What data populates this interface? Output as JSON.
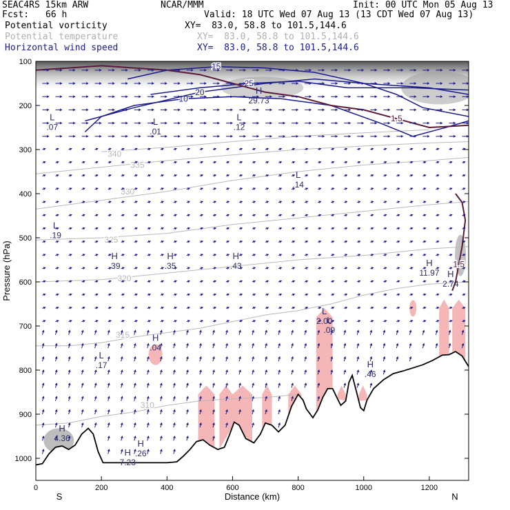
{
  "header": {
    "model": "SEAC4RS 15km ARW",
    "center": "NCAR/MMM",
    "init": "Init: 00 UTC Mon 05 Aug 13",
    "fcst_label": "Fcst:",
    "fcst_value": "66 h",
    "valid": "Valid: 18 UTC Wed 07 Aug 13 (13 CDT Wed 07 Aug 13)"
  },
  "fields": [
    {
      "name": "Potential vorticity",
      "xy": "XY=  83.0, 58.8 to 101.5,144.6",
      "color": "#000000"
    },
    {
      "name": "Potential temperature",
      "xy": "XY=  83.0, 58.8 to 101.5,144.6",
      "color": "#b0b0b0"
    },
    {
      "name": "Horizontal wind speed",
      "xy": "XY=  83.0, 58.8 to 101.5,144.6",
      "color": "#1a1a8c"
    }
  ],
  "colors": {
    "pv_shade": "#999999",
    "pv_contour": "#5a1a3a",
    "theta": "#b8b8b8",
    "wind": "#1a1a8c",
    "vertical_motion": "#f4b6b6",
    "terrain": "#000000"
  },
  "chart_data": {
    "type": "cross-section",
    "xlabel": "Distance (km)",
    "ylabel": "Pressure (hPa)",
    "xlim": [
      0,
      1320
    ],
    "ylim": [
      1050,
      100
    ],
    "x_ticks": [
      0,
      200,
      400,
      600,
      800,
      1000,
      1200
    ],
    "y_ticks": [
      100,
      200,
      300,
      400,
      500,
      600,
      700,
      800,
      900,
      1000
    ],
    "end_labels": {
      "left": "S",
      "right": "N"
    },
    "terrain": [
      [
        0,
        1015
      ],
      [
        20,
        1012
      ],
      [
        40,
        990
      ],
      [
        60,
        975
      ],
      [
        80,
        972
      ],
      [
        100,
        980
      ],
      [
        120,
        970
      ],
      [
        140,
        945
      ],
      [
        160,
        932
      ],
      [
        175,
        945
      ],
      [
        190,
        985
      ],
      [
        205,
        1010
      ],
      [
        300,
        1010
      ],
      [
        400,
        1010
      ],
      [
        430,
        1008
      ],
      [
        450,
        995
      ],
      [
        470,
        980
      ],
      [
        490,
        962
      ],
      [
        510,
        958
      ],
      [
        530,
        970
      ],
      [
        555,
        980
      ],
      [
        575,
        975
      ],
      [
        590,
        948
      ],
      [
        605,
        918
      ],
      [
        620,
        925
      ],
      [
        640,
        955
      ],
      [
        665,
        965
      ],
      [
        685,
        945
      ],
      [
        700,
        920
      ],
      [
        720,
        925
      ],
      [
        740,
        940
      ],
      [
        760,
        925
      ],
      [
        780,
        882
      ],
      [
        800,
        855
      ],
      [
        815,
        868
      ],
      [
        825,
        888
      ],
      [
        845,
        908
      ],
      [
        860,
        890
      ],
      [
        875,
        862
      ],
      [
        890,
        842
      ],
      [
        905,
        842
      ],
      [
        920,
        865
      ],
      [
        930,
        880
      ],
      [
        945,
        870
      ],
      [
        955,
        828
      ],
      [
        965,
        812
      ],
      [
        980,
        855
      ],
      [
        990,
        885
      ],
      [
        1000,
        892
      ],
      [
        1010,
        868
      ],
      [
        1030,
        842
      ],
      [
        1060,
        822
      ],
      [
        1090,
        808
      ],
      [
        1120,
        802
      ],
      [
        1150,
        795
      ],
      [
        1180,
        788
      ],
      [
        1210,
        778
      ],
      [
        1240,
        766
      ],
      [
        1260,
        765
      ],
      [
        1280,
        758
      ],
      [
        1300,
        768
      ],
      [
        1320,
        792
      ]
    ],
    "theta_contours": [
      {
        "label": "310",
        "label_at": [
          340,
          880
        ],
        "points": [
          [
            0,
            925
          ],
          [
            100,
            920
          ],
          [
            200,
            905
          ],
          [
            300,
            895
          ],
          [
            400,
            880
          ],
          [
            500,
            870
          ],
          [
            600,
            865
          ],
          [
            700,
            862
          ],
          [
            800,
            855
          ]
        ]
      },
      {
        "label": "315",
        "label_at": [
          265,
          720
        ],
        "points": [
          [
            0,
            745
          ],
          [
            100,
            745
          ],
          [
            200,
            738
          ],
          [
            300,
            725
          ],
          [
            400,
            715
          ],
          [
            500,
            705
          ],
          [
            600,
            690
          ],
          [
            700,
            675
          ],
          [
            800,
            665
          ],
          [
            900,
            650
          ],
          [
            1000,
            630
          ],
          [
            1100,
            615
          ],
          [
            1200,
            605
          ],
          [
            1320,
            600
          ]
        ]
      },
      {
        "label": "320",
        "label_at": [
          270,
          592
        ],
        "points": [
          [
            0,
            600
          ],
          [
            200,
            595
          ],
          [
            400,
            580
          ],
          [
            600,
            565
          ],
          [
            800,
            550
          ],
          [
            1000,
            540
          ],
          [
            1200,
            525
          ],
          [
            1320,
            520
          ]
        ]
      },
      {
        "label": "325",
        "label_at": [
          230,
          505
        ],
        "points": [
          [
            0,
            505
          ],
          [
            200,
            500
          ],
          [
            400,
            490
          ],
          [
            600,
            470
          ],
          [
            800,
            455
          ],
          [
            1000,
            440
          ],
          [
            1200,
            425
          ],
          [
            1320,
            418
          ]
        ]
      },
      {
        "label": "330",
        "label_at": [
          280,
          395
        ],
        "points": [
          [
            0,
            435
          ],
          [
            200,
            415
          ],
          [
            400,
            395
          ],
          [
            600,
            370
          ],
          [
            800,
            350
          ],
          [
            1000,
            335
          ],
          [
            1200,
            325
          ],
          [
            1320,
            318
          ]
        ]
      },
      {
        "label": "335",
        "label_at": [
          310,
          335
        ],
        "points": [
          [
            0,
            355
          ],
          [
            200,
            340
          ],
          [
            400,
            325
          ],
          [
            600,
            312
          ],
          [
            800,
            300
          ],
          [
            1000,
            292
          ],
          [
            1200,
            285
          ],
          [
            1320,
            282
          ]
        ]
      },
      {
        "label": "340",
        "label_at": [
          240,
          310
        ],
        "points": [
          [
            200,
            305
          ],
          [
            400,
            295
          ],
          [
            600,
            282
          ],
          [
            800,
            270
          ],
          [
            1000,
            262
          ],
          [
            1200,
            255
          ]
        ]
      }
    ],
    "wind_speed_contours": [
      {
        "label": "10",
        "points": [
          [
            150,
            260
          ],
          [
            200,
            225
          ],
          [
            300,
            200
          ],
          [
            450,
            185
          ],
          [
            600,
            180
          ],
          [
            750,
            185
          ],
          [
            900,
            200
          ],
          [
            1050,
            240
          ],
          [
            1150,
            270
          ],
          [
            1250,
            250
          ],
          [
            1320,
            235
          ]
        ]
      },
      {
        "label": "15",
        "points": [
          [
            280,
            140
          ],
          [
            400,
            120
          ],
          [
            550,
            112
          ],
          [
            700,
            115
          ],
          [
            850,
            125
          ],
          [
            1000,
            150
          ],
          [
            1100,
            175
          ],
          [
            1180,
            205
          ],
          [
            1320,
            225
          ]
        ]
      },
      {
        "label": "20",
        "points": [
          [
            150,
            235
          ],
          [
            300,
            205
          ],
          [
            500,
            170
          ],
          [
            700,
            150
          ],
          [
            850,
            140
          ],
          [
            1000,
            150
          ],
          [
            1200,
            160
          ],
          [
            1320,
            175
          ]
        ]
      },
      {
        "label": "25",
        "points": [
          [
            350,
            175
          ],
          [
            500,
            160
          ],
          [
            650,
            150
          ],
          [
            800,
            145
          ],
          [
            950,
            160
          ],
          [
            1150,
            160
          ],
          [
            1320,
            165
          ]
        ]
      }
    ],
    "pv_contours": [
      {
        "label": "1.5",
        "points": [
          [
            0,
            120
          ],
          [
            100,
            115
          ],
          [
            200,
            110
          ],
          [
            300,
            115
          ],
          [
            400,
            120
          ],
          [
            500,
            130
          ],
          [
            600,
            150
          ],
          [
            700,
            170
          ],
          [
            800,
            180
          ],
          [
            900,
            200
          ],
          [
            1000,
            210
          ],
          [
            1100,
            230
          ],
          [
            1200,
            250
          ],
          [
            1320,
            245
          ]
        ]
      },
      {
        "label": "1.5",
        "points": [
          [
            1280,
            400
          ],
          [
            1300,
            420
          ],
          [
            1310,
            460
          ],
          [
            1300,
            520
          ],
          [
            1290,
            560
          ],
          [
            1280,
            600
          ],
          [
            1270,
            620
          ]
        ]
      }
    ],
    "extrema": [
      {
        "kind": "H",
        "value": "29.73",
        "x": 680,
        "p": 180
      },
      {
        "kind": "L",
        "value": ".07",
        "x": 50,
        "p": 240
      },
      {
        "kind": "L",
        "value": ".01",
        "x": 365,
        "p": 250
      },
      {
        "kind": "L",
        "value": ".12",
        "x": 620,
        "p": 240
      },
      {
        "kind": "L",
        "value": ".14",
        "x": 800,
        "p": 370
      },
      {
        "kind": "L",
        "value": ".19",
        "x": 60,
        "p": 485
      },
      {
        "kind": "H",
        "value": ".39",
        "x": 240,
        "p": 555
      },
      {
        "kind": "H",
        "value": ".35",
        "x": 410,
        "p": 555
      },
      {
        "kind": "H",
        "value": ".43",
        "x": 610,
        "p": 555
      },
      {
        "kind": "H",
        "value": "11.97",
        "x": 1200,
        "p": 570
      },
      {
        "kind": "H",
        "value": "2.74",
        "x": 1265,
        "p": 595
      },
      {
        "kind": "L",
        "value": "2.00",
        "x": 880,
        "p": 680
      },
      {
        "kind": "L",
        "value": ".09",
        "x": 895,
        "p": 700
      },
      {
        "kind": "H",
        "value": ".04",
        "x": 365,
        "p": 740
      },
      {
        "kind": "L",
        "value": ".17",
        "x": 200,
        "p": 780
      },
      {
        "kind": "H",
        "value": ".46",
        "x": 1020,
        "p": 800
      },
      {
        "kind": "H",
        "value": "4.36",
        "x": 80,
        "p": 945
      },
      {
        "kind": "H",
        "value": ".26",
        "x": 320,
        "p": 980
      },
      {
        "kind": "H",
        "value": "7.23",
        "x": 280,
        "p": 1000
      }
    ]
  }
}
